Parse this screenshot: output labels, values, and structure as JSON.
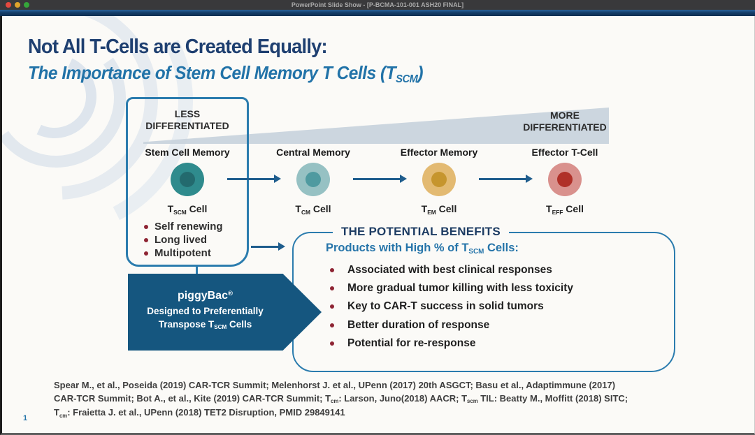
{
  "window": {
    "title": "PowerPoint Slide Show - [P-BCMA-101-001 ASH20 FINAL]"
  },
  "slide": {
    "page_number": "1",
    "title": "Not All T-Cells are Created Equally:",
    "subtitle": {
      "t0": "The Importance of Stem Cell Memory T Cells (T",
      "sub0": "SCM",
      "t1": ")"
    },
    "differentiation": {
      "less": {
        "line1": "LESS",
        "line2": "DIFFERENTIATED"
      },
      "more": {
        "line1": "MORE",
        "line2": "DIFFERENTIATED"
      }
    },
    "stages": [
      {
        "name": "Stem Cell Memory",
        "cell": {
          "t0": "T",
          "sub0": "SCM",
          "t1": " Cell"
        },
        "outer_color": "#2f8b8d",
        "inner_color": "#236a6e"
      },
      {
        "name": "Central Memory",
        "cell": {
          "t0": "T",
          "sub0": "CM",
          "t1": " Cell"
        },
        "outer_color": "#96c1c3",
        "inner_color": "#4f9aa0"
      },
      {
        "name": "Effector Memory",
        "cell": {
          "t0": "T",
          "sub0": "EM",
          "t1": " Cell"
        },
        "outer_color": "#e3ba72",
        "inner_color": "#c6952e"
      },
      {
        "name": "Effector T-Cell",
        "cell": {
          "t0": "T",
          "sub0": "EFF",
          "t1": " Cell"
        },
        "outer_color": "#d9918d",
        "inner_color": "#b03028"
      }
    ],
    "scm_traits": [
      "Self renewing",
      "Long lived",
      "Multipotent"
    ],
    "piggybac": {
      "title_t0": "piggyBac",
      "title_sup": "®",
      "line1": "Designed to Preferentially",
      "line2": {
        "t0": "Transpose T",
        "sub0": "SCM",
        "t1": " Cells"
      }
    },
    "benefits": {
      "title": "THE POTENTIAL BENEFITS",
      "subtitle": {
        "t0": "Products with High % of T",
        "sub0": "SCM",
        "t1": " Cells:"
      },
      "items": [
        "Associated with best clinical responses",
        "More gradual tumor killing with less toxicity",
        "Key to CAR-T success in solid tumors",
        "Better duration of response",
        "Potential for re-response"
      ]
    },
    "footer": {
      "line1": "Spear M., et al., Poseida (2019) CAR-TCR Summit;  Melenhorst J. et al., UPenn (2017) 20th ASGCT;  Basu et al., Adaptimmune (2017)",
      "line2": {
        "t0": "CAR-TCR Summit;  Bot A., et al., Kite (2019) CAR-TCR Summit;  T",
        "sub0": "cm",
        "t1": ": Larson, Juno(2018) AACR;  T",
        "sub1": "scm",
        "t2": " TIL: Beatty M., Moffitt (2018) SITC;"
      },
      "line3": {
        "t0": "T",
        "sub0": "cm",
        "t1": ": Fraietta J. et al., UPenn (2018) TET2 Disruption, PMID 29849141"
      }
    },
    "colors": {
      "accent_teal_border": "#2b7cae",
      "title_navy": "#1e3f70",
      "subtitle_blue": "#2273a8",
      "piggybac_bg": "#15567f",
      "bullet_maroon": "#8e2433",
      "wedge_gray_blue": "#c8d3dc",
      "arrow_blue": "#1f5d8d"
    }
  }
}
